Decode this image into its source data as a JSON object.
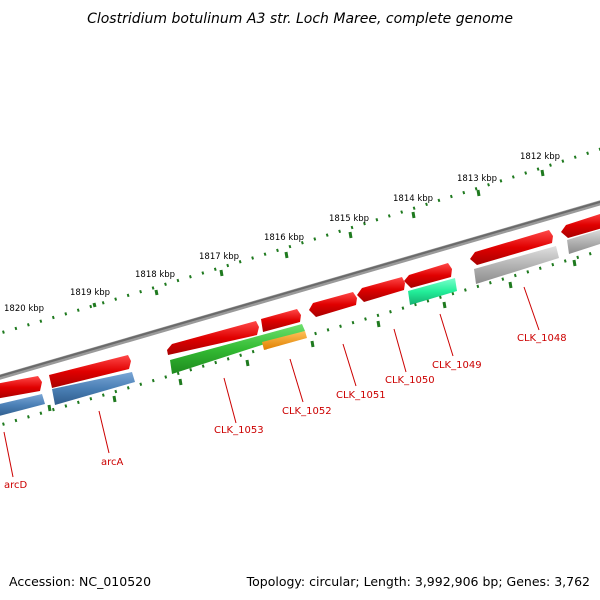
{
  "title": "Clostridium botulinum A3 str. Loch Maree, complete genome",
  "footer": {
    "accession": "Accession: NC_010520",
    "stats": "Topology: circular; Length: 3,992,906 bp; Genes: 3,762"
  },
  "ruler": [
    "1820 kbp",
    "1819 kbp",
    "1818 kbp",
    "1817 kbp",
    "1816 kbp",
    "1815 kbp",
    "1814 kbp",
    "1813 kbp",
    "1812 kbp"
  ],
  "genes": [
    "arcD",
    "arcA",
    "CLK_1053",
    "CLK_1052",
    "CLK_1051",
    "CLK_1050",
    "CLK_1049",
    "CLK_1048"
  ],
  "colors": {
    "backbone": "#7a7a7a",
    "cds": "#e00000",
    "blue": "#4a7fb5",
    "green": "#33bb33",
    "orange": "#ff9900",
    "teal": "#22ee99",
    "grey": "#b4b4b4",
    "tick": "#1f7a1f",
    "label": "#cc0000"
  }
}
